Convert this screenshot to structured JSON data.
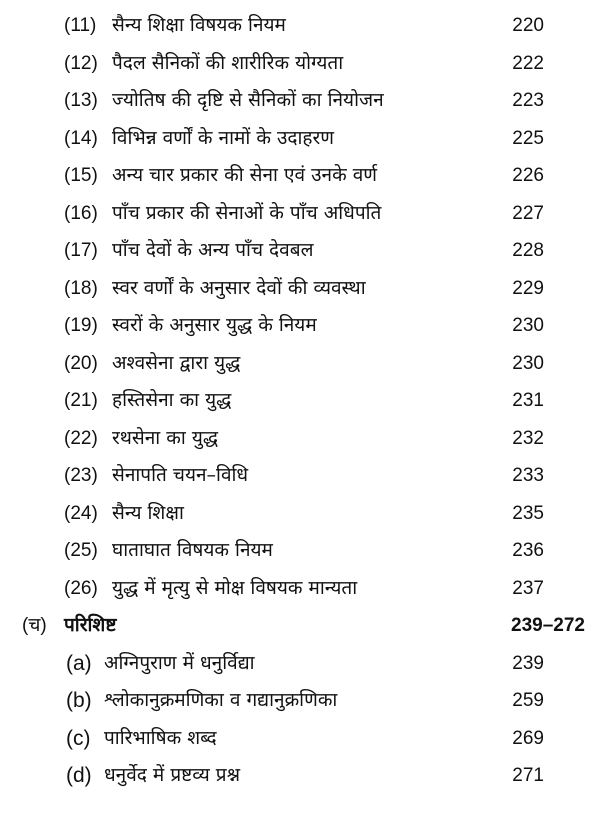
{
  "entries": [
    {
      "num": "(11)",
      "title": "सैन्य शिक्षा विषयक नियम",
      "page": "220"
    },
    {
      "num": "(12)",
      "title": "पैदल सैनिकों की शारीरिक योग्यता",
      "page": "222"
    },
    {
      "num": "(13)",
      "title": "ज्योतिष की दृष्टि से सैनिकों का नियोजन",
      "page": "223"
    },
    {
      "num": "(14)",
      "title": "विभिन्न वर्णों के नामों के उदाहरण",
      "page": "225"
    },
    {
      "num": "(15)",
      "title": "अन्य चार प्रकार की सेना एवं उनके वर्ण",
      "page": "226"
    },
    {
      "num": "(16)",
      "title": "पाँच प्रकार की सेनाओं के पाँच अधिपति",
      "page": "227"
    },
    {
      "num": "(17)",
      "title": "पाँच देवों के अन्य पाँच देवबल",
      "page": "228"
    },
    {
      "num": "(18)",
      "title": "स्वर वर्णों के अनुसार देवों की व्यवस्था",
      "page": "229"
    },
    {
      "num": "(19)",
      "title": "स्वरों के अनुसार युद्ध के नियम",
      "page": "230"
    },
    {
      "num": "(20)",
      "title": "अश्वसेना द्वारा युद्ध",
      "page": "230"
    },
    {
      "num": "(21)",
      "title": "हस्तिसेना का युद्ध",
      "page": "231"
    },
    {
      "num": "(22)",
      "title": "रथसेना का युद्ध",
      "page": "232"
    },
    {
      "num": "(23)",
      "title": "सेनापति चयन–विधि",
      "page": "233"
    },
    {
      "num": "(24)",
      "title": "सैन्य शिक्षा",
      "page": "235"
    },
    {
      "num": "(25)",
      "title": "घाताघात विषयक नियम",
      "page": "236"
    },
    {
      "num": "(26)",
      "title": "युद्ध में मृत्यु से मोक्ष विषयक मान्यता",
      "page": "237"
    }
  ],
  "appendix": {
    "num": "(च)",
    "title": "परिशिष्ट",
    "page": "239–272",
    "items": [
      {
        "num": "(a)",
        "title": "अग्निपुराण में धनुर्विद्या",
        "page": "239"
      },
      {
        "num": "(b)",
        "title": "श्लोकानुक्रमणिका व गद्यानुक्रणिका",
        "page": "259"
      },
      {
        "num": "(c)",
        "title": "पारिभाषिक शब्द",
        "page": "269"
      },
      {
        "num": "(d)",
        "title": "धनुर्वेद में प्रष्टव्य प्रश्न",
        "page": "271"
      }
    ]
  }
}
